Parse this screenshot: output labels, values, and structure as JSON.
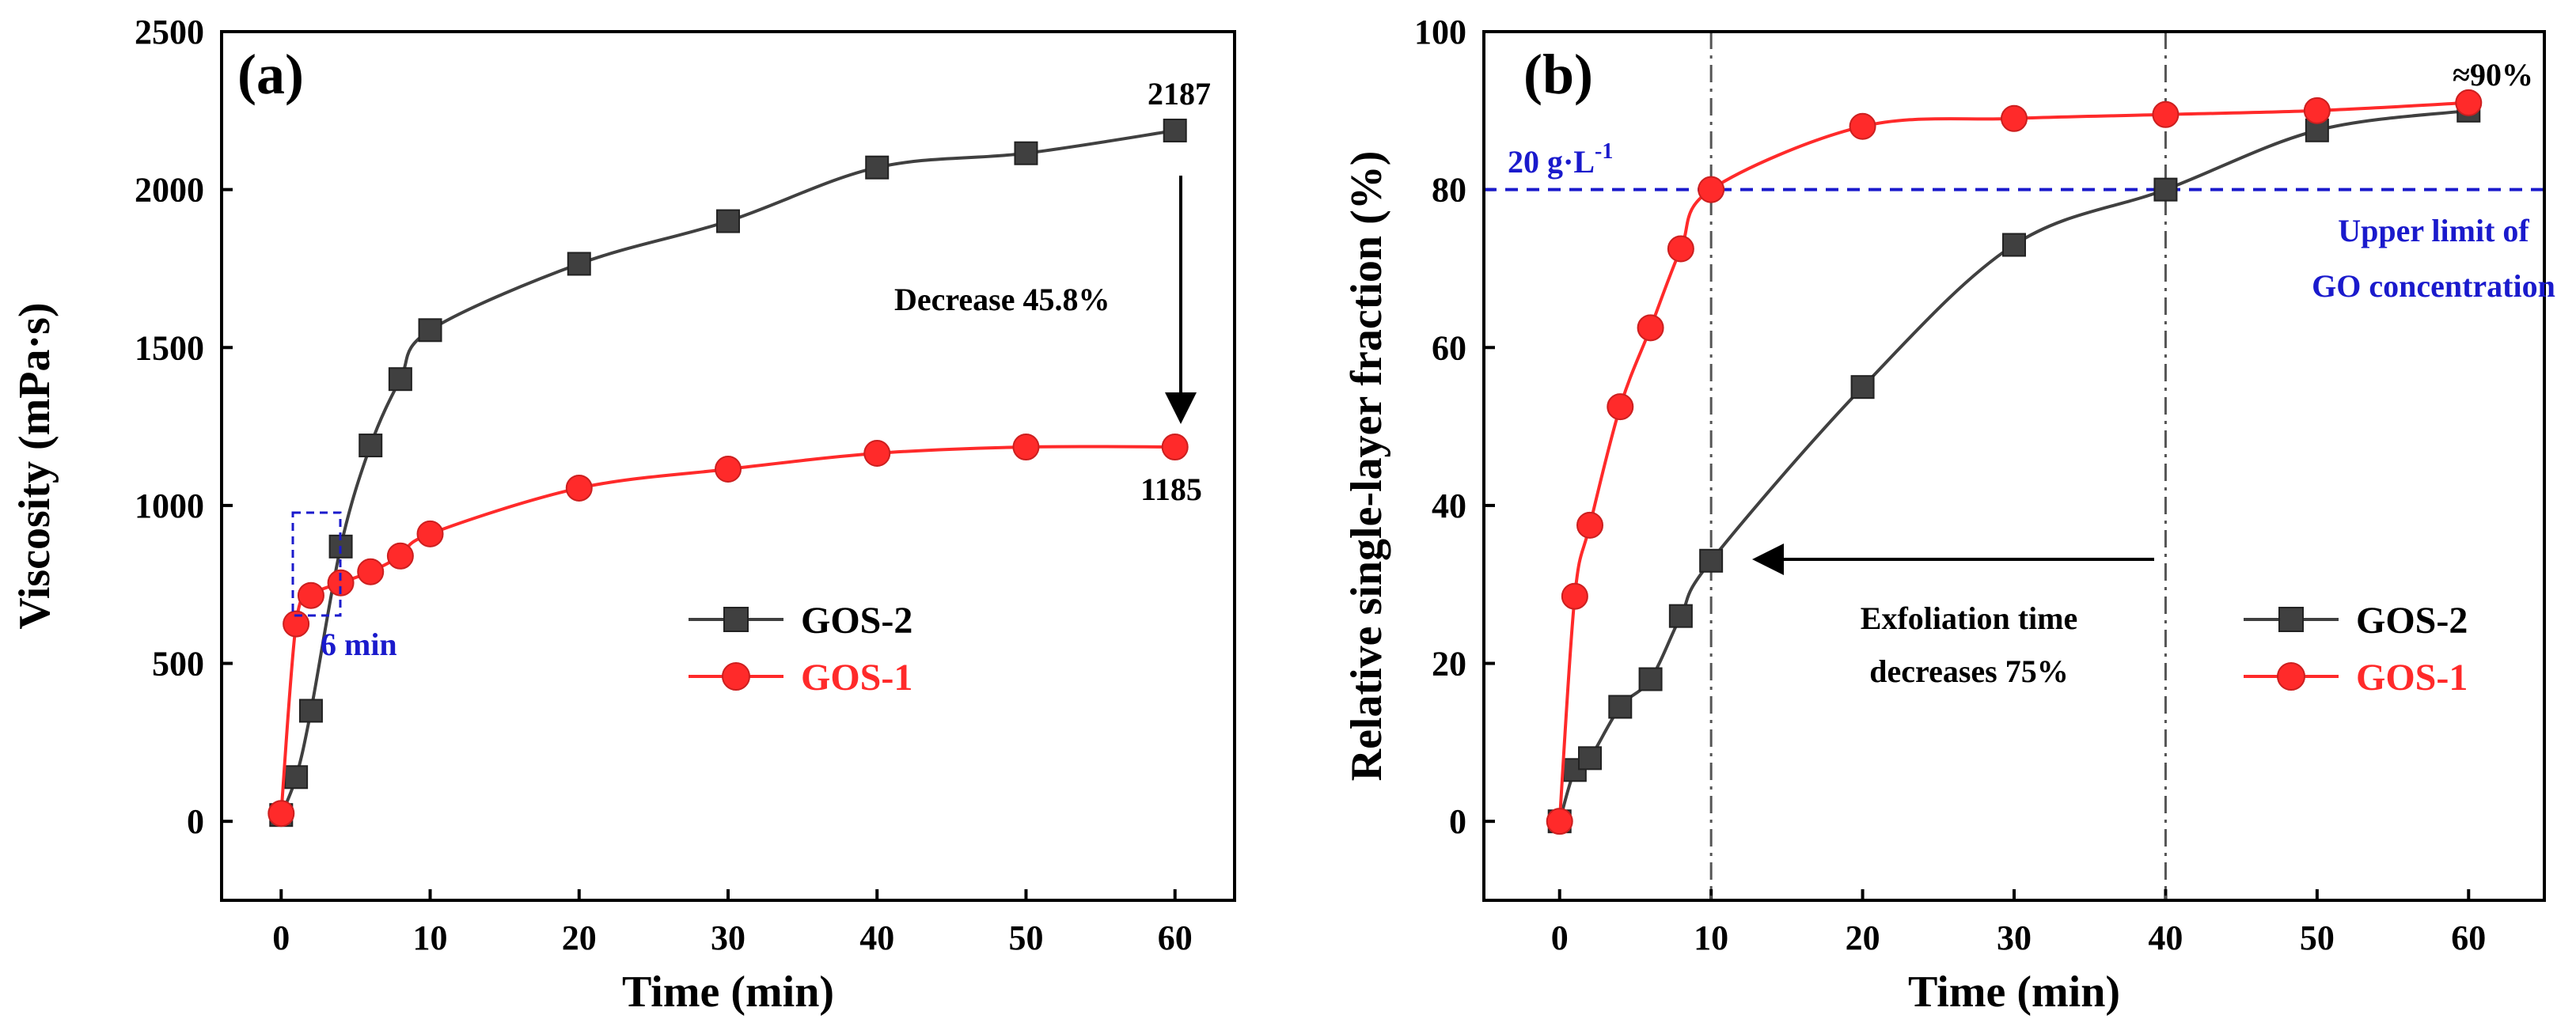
{
  "colors": {
    "gos2": "#404040",
    "gos1": "#ff2a2a",
    "blue": "#1a1acc",
    "axis": "#000000",
    "dashdot": "#555555"
  },
  "chart_data": [
    {
      "type": "line",
      "panel": "(a)",
      "xlabel": "Time (min)",
      "ylabel": "Viscosity (mPa·s)",
      "xlim": [
        -4,
        64
      ],
      "ylim": [
        -250,
        2500
      ],
      "xticks": [
        0,
        10,
        20,
        30,
        40,
        50,
        60
      ],
      "yticks": [
        0,
        500,
        1000,
        1500,
        2000,
        2500
      ],
      "series": [
        {
          "name": "GOS-2",
          "marker": "square",
          "color": "#404040",
          "x": [
            0,
            1,
            2,
            4,
            6,
            8,
            10,
            20,
            30,
            40,
            50,
            60
          ],
          "y": [
            20,
            140,
            350,
            870,
            1190,
            1400,
            1555,
            1765,
            1900,
            2070,
            2115,
            2187
          ]
        },
        {
          "name": "GOS-1",
          "marker": "circle",
          "color": "#ff2a2a",
          "x": [
            0,
            1,
            2,
            4,
            6,
            8,
            10,
            20,
            30,
            40,
            50,
            60
          ],
          "y": [
            25,
            625,
            715,
            755,
            790,
            840,
            910,
            1055,
            1115,
            1165,
            1185,
            1185
          ]
        }
      ],
      "annotations": {
        "top_value": "2187",
        "bottom_value": "1185",
        "decrease": "Decrease 45.8%",
        "six_min": "6 min"
      },
      "legend": {
        "position": "center-right",
        "entries": [
          "GOS-2",
          "GOS-1"
        ]
      }
    },
    {
      "type": "line",
      "panel": "(b)",
      "xlabel": "Time (min)",
      "ylabel": "Relative single-layer fraction (%)",
      "xlim": [
        -5,
        65
      ],
      "ylim": [
        -10,
        100
      ],
      "xticks": [
        0,
        10,
        20,
        30,
        40,
        50,
        60
      ],
      "yticks": [
        0,
        20,
        40,
        60,
        80,
        100
      ],
      "series": [
        {
          "name": "GOS-2",
          "marker": "square",
          "color": "#404040",
          "x": [
            0,
            1,
            2,
            4,
            6,
            8,
            10,
            20,
            30,
            40,
            50,
            60
          ],
          "y": [
            0,
            6.5,
            8,
            14.5,
            18,
            26,
            33,
            55,
            73,
            80,
            87.5,
            90
          ]
        },
        {
          "name": "GOS-1",
          "marker": "circle",
          "color": "#ff2a2a",
          "x": [
            0,
            1,
            2,
            4,
            6,
            8,
            10,
            20,
            30,
            40,
            50,
            60
          ],
          "y": [
            0,
            28.5,
            37.5,
            52.5,
            62.5,
            72.5,
            80,
            88,
            89,
            89.5,
            90,
            91
          ]
        }
      ],
      "reference_lines": {
        "horizontal_y": 80,
        "vertical_x": [
          10,
          40
        ]
      },
      "annotations": {
        "concentration": "20 g·L",
        "concentration_sup": "-1",
        "upper_limit_1": "Upper limit of",
        "upper_limit_2": "GO concentration",
        "approx": "≈90%",
        "exfoliation_1": "Exfoliation time",
        "exfoliation_2": "decreases 75%"
      },
      "legend": {
        "position": "lower-right",
        "entries": [
          "GOS-2",
          "GOS-1"
        ]
      }
    }
  ]
}
